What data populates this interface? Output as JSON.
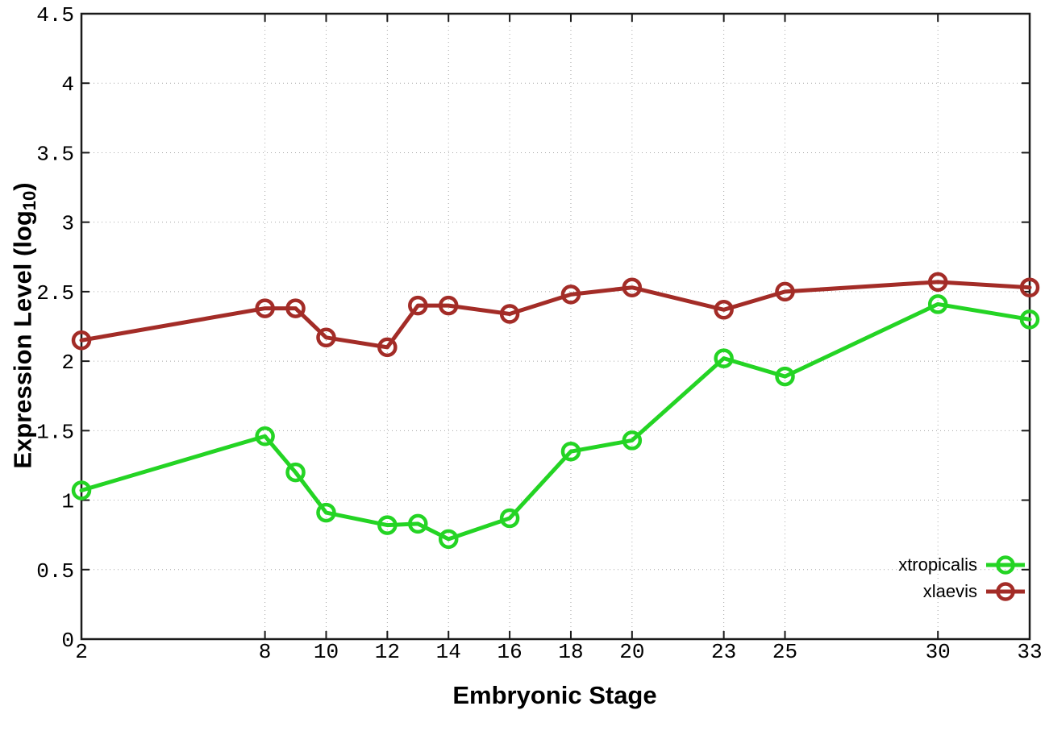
{
  "chart_data": {
    "type": "line",
    "title": "",
    "xlabel": "Embryonic Stage",
    "ylabel": "Expression Level (log10)",
    "ylabel_parts": {
      "main": "Expression Level (log",
      "subscript": "10",
      "close": ")"
    },
    "x": [
      2,
      8,
      9,
      10,
      12,
      13,
      14,
      16,
      18,
      20,
      23,
      25,
      30,
      33
    ],
    "series": [
      {
        "name": "xtropicalis",
        "color": "#24d424",
        "values": [
          1.07,
          1.46,
          1.2,
          0.91,
          0.82,
          0.83,
          0.72,
          0.87,
          1.35,
          1.43,
          2.02,
          1.89,
          2.41,
          2.3
        ]
      },
      {
        "name": "xlaevis",
        "color": "#a32c27",
        "values": [
          2.15,
          2.38,
          2.38,
          2.17,
          2.1,
          2.4,
          2.4,
          2.34,
          2.48,
          2.53,
          2.37,
          2.5,
          2.57,
          2.53
        ]
      }
    ],
    "xlim": [
      2,
      33
    ],
    "ylim": [
      0,
      4.5
    ],
    "xticks": {
      "values": [
        2,
        8,
        10,
        12,
        14,
        16,
        18,
        20,
        23,
        25,
        30,
        33
      ],
      "labels": [
        "2",
        "8",
        "10",
        "12",
        "14",
        "16",
        "18",
        "20",
        "23",
        "25",
        "30",
        "33"
      ]
    },
    "yticks": {
      "values": [
        0,
        0.5,
        1,
        1.5,
        2,
        2.5,
        3,
        3.5,
        4,
        4.5
      ],
      "labels": [
        "0",
        "0.5",
        "1",
        "1.5",
        "2",
        "2.5",
        "3",
        "3.5",
        "4",
        "4.5"
      ]
    },
    "grid": true,
    "legend_position": "bottom-right",
    "marker": "open-circle",
    "line_style": "solid"
  },
  "colors": {
    "background": "#ffffff",
    "border": "#1a1a1a",
    "grid": "#a8a8a8",
    "text": "#000000"
  }
}
